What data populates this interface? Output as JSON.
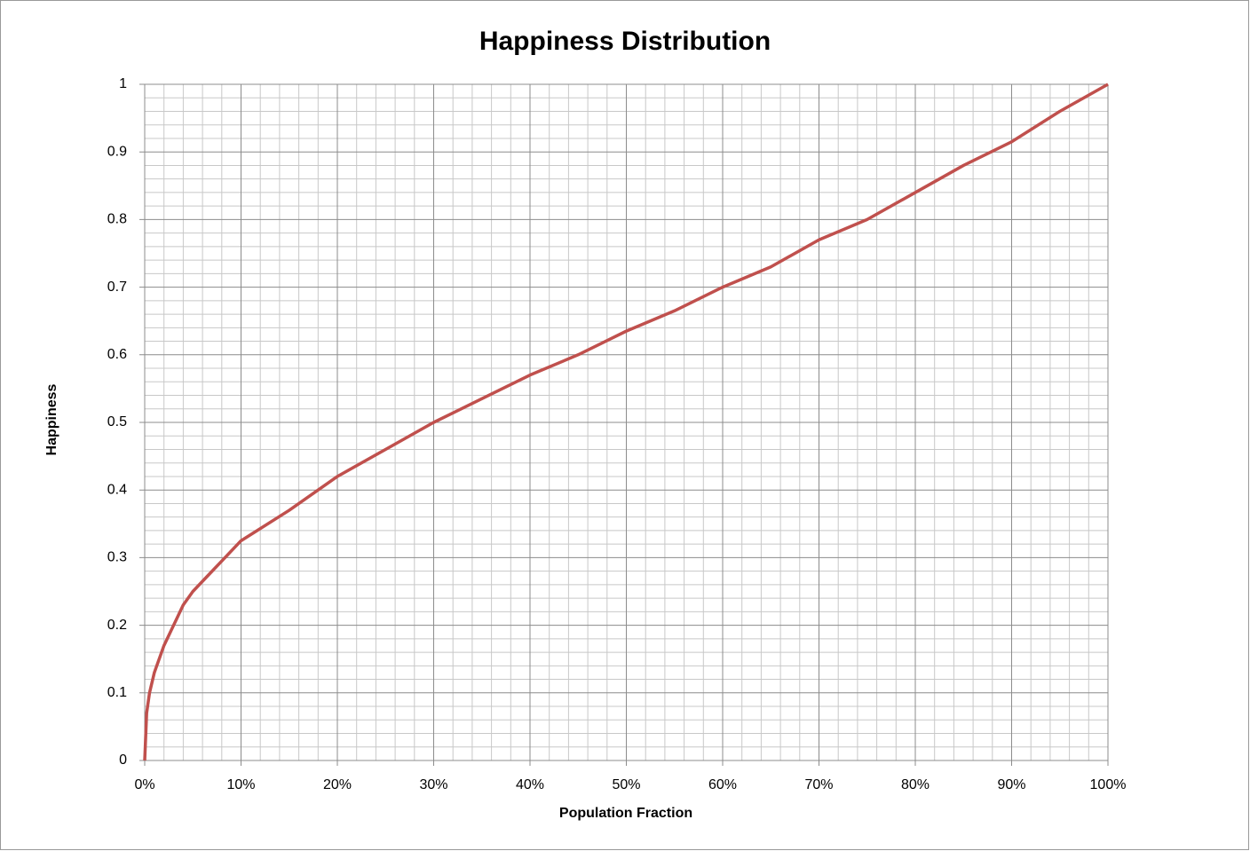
{
  "chart_data": {
    "type": "line",
    "title": "Happiness Distribution",
    "x_label": "Population Fraction",
    "y_label": "Happiness",
    "x": [
      0,
      0.2,
      0.5,
      1,
      2,
      3,
      4,
      5,
      7,
      10,
      15,
      20,
      25,
      30,
      35,
      40,
      45,
      50,
      55,
      60,
      65,
      70,
      75,
      80,
      85,
      90,
      95,
      100
    ],
    "series": [
      {
        "color": "#c0504d",
        "values": [
          0,
          0.07,
          0.1,
          0.13,
          0.17,
          0.2,
          0.23,
          0.25,
          0.28,
          0.325,
          0.37,
          0.42,
          0.46,
          0.5,
          0.535,
          0.57,
          0.6,
          0.635,
          0.665,
          0.7,
          0.73,
          0.77,
          0.8,
          0.84,
          0.88,
          0.915,
          0.96,
          1
        ]
      }
    ],
    "xlim": [
      0,
      100
    ],
    "xticks": [
      {
        "value": 0,
        "label": "0%"
      },
      {
        "value": 10,
        "label": "10%"
      },
      {
        "value": 20,
        "label": "20%"
      },
      {
        "value": 30,
        "label": "30%"
      },
      {
        "value": 40,
        "label": "40%"
      },
      {
        "value": 50,
        "label": "50%"
      },
      {
        "value": 60,
        "label": "60%"
      },
      {
        "value": 70,
        "label": "70%"
      },
      {
        "value": 80,
        "label": "80%"
      },
      {
        "value": 90,
        "label": "90%"
      },
      {
        "value": 100,
        "label": "100%"
      }
    ],
    "ylim": [
      0,
      1
    ],
    "yticks": [
      0,
      0.1,
      0.2,
      0.3,
      0.4,
      0.5,
      0.6,
      0.7,
      0.8,
      0.9,
      1
    ],
    "grid": true,
    "minor_grid": true
  }
}
